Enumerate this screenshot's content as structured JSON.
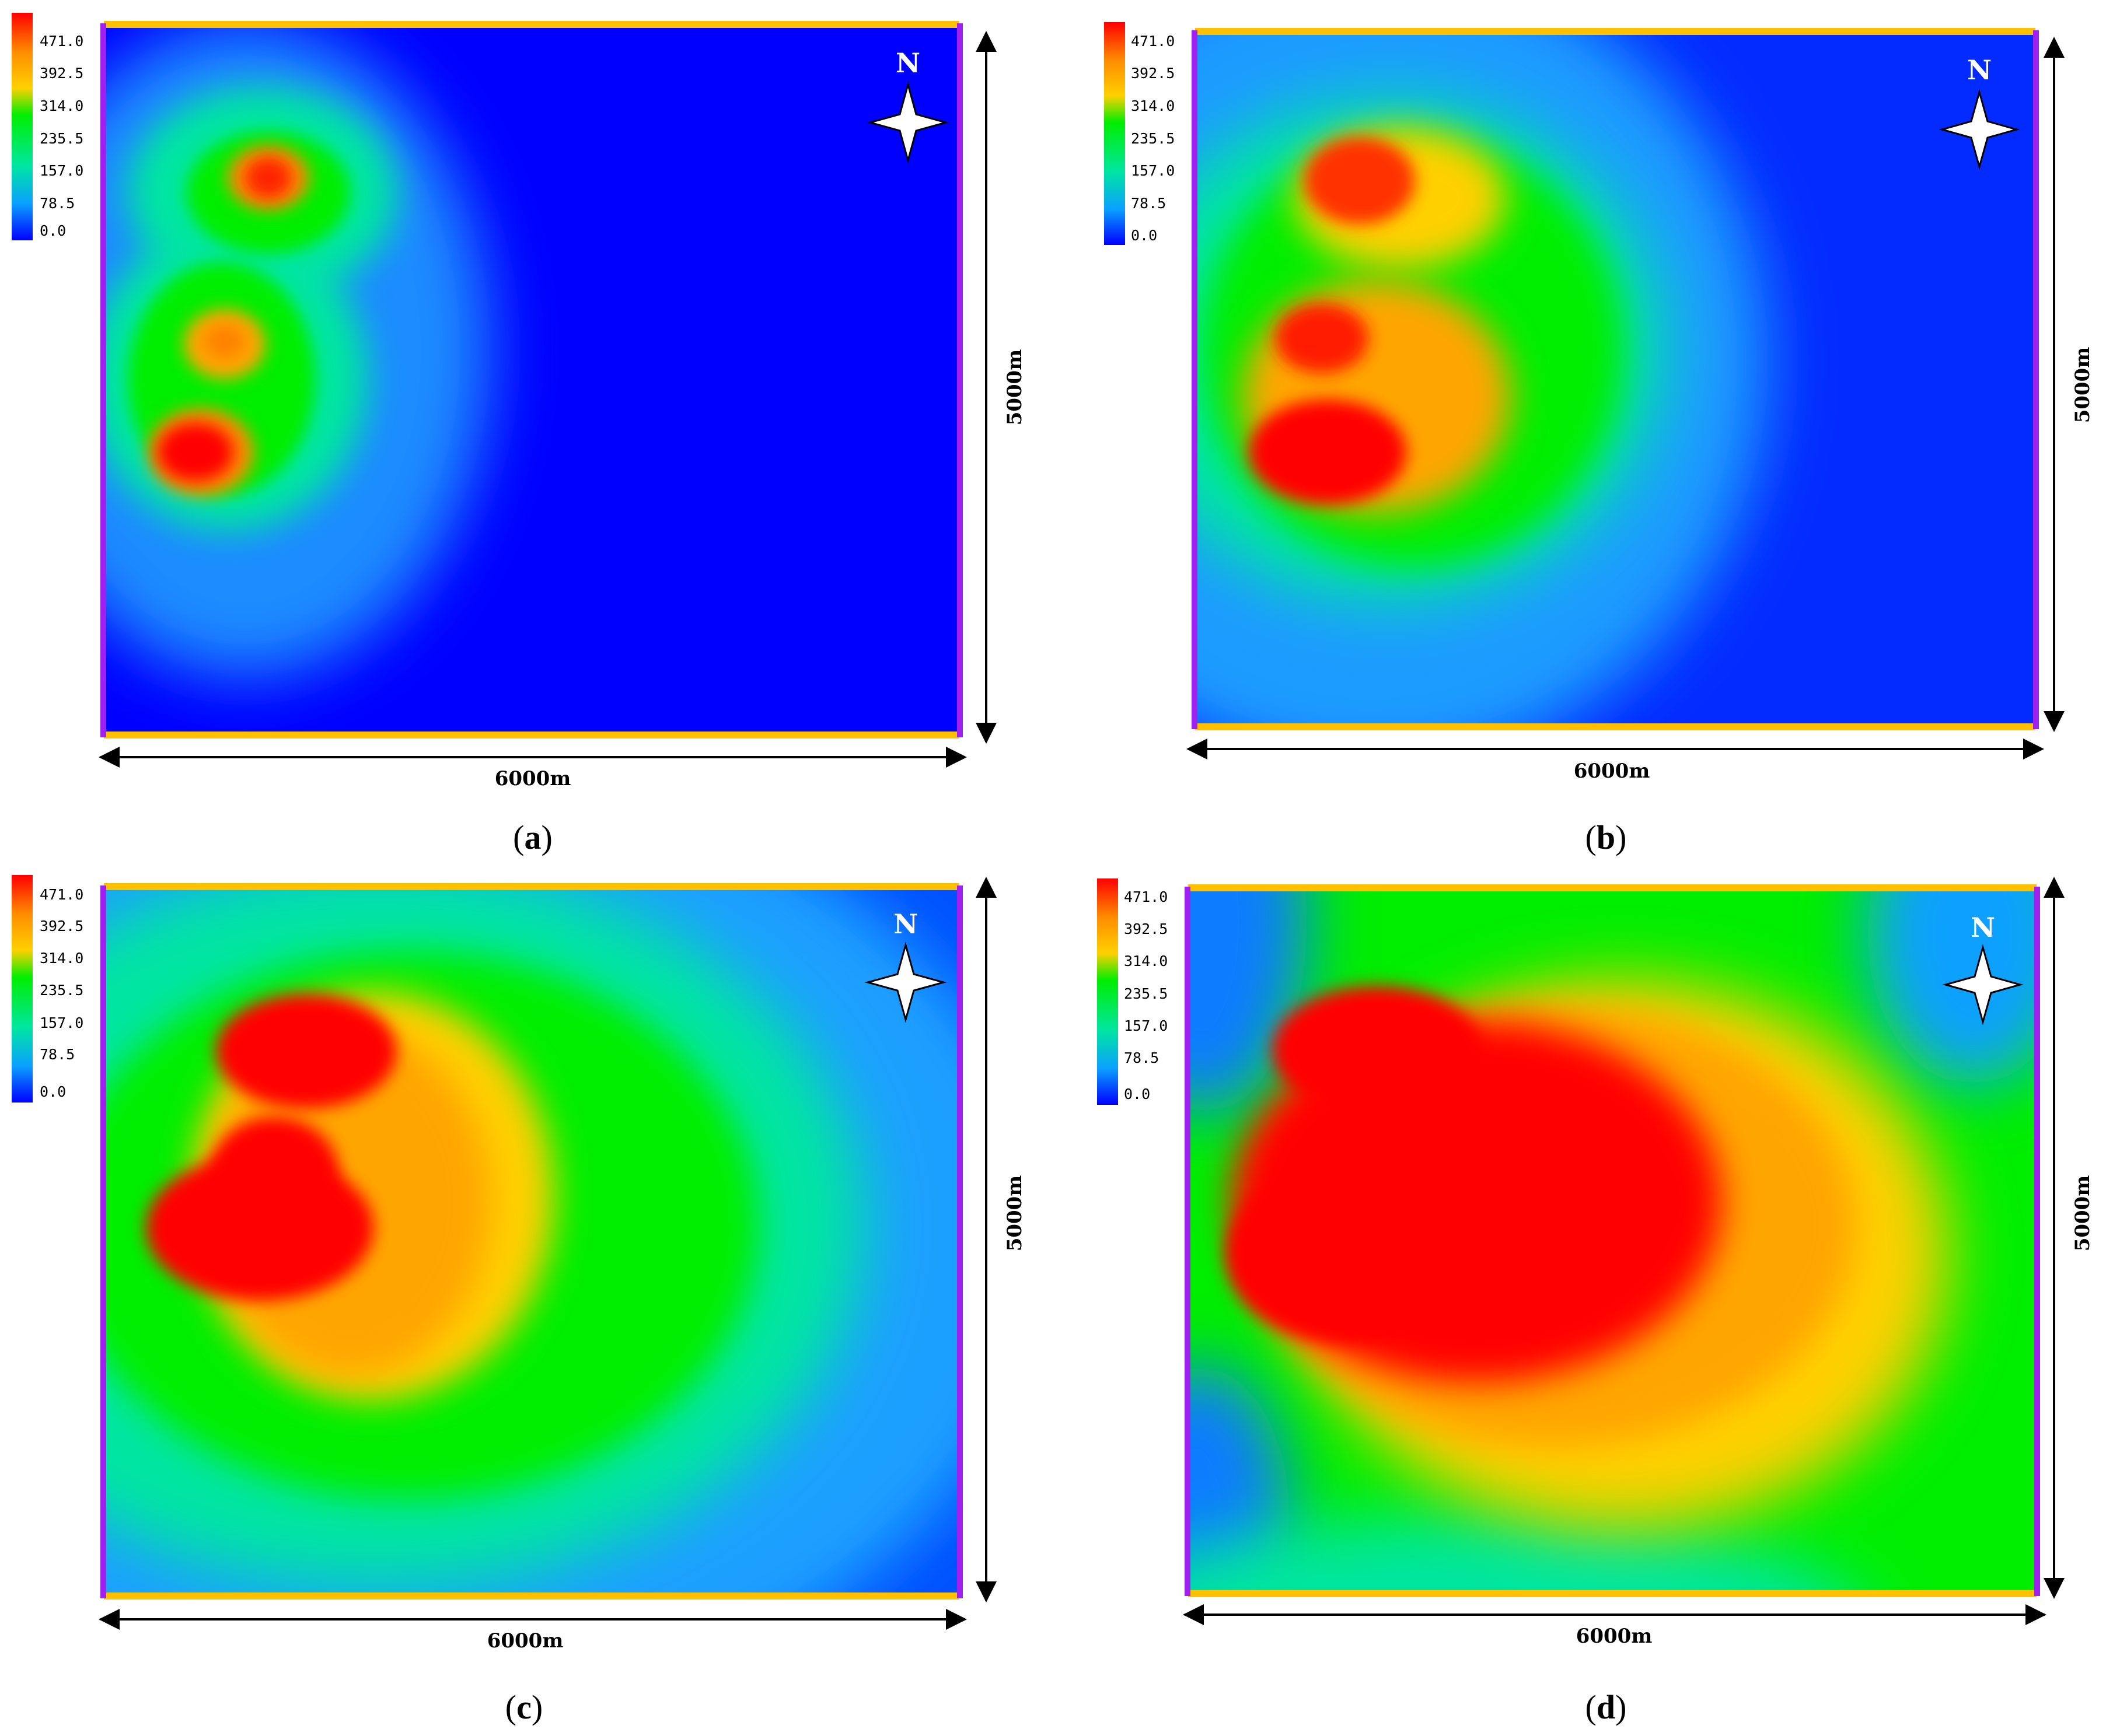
{
  "colorbar": {
    "ticks": [
      "471.0",
      "392.5",
      "314.0",
      "235.5",
      "157.0",
      "78.5",
      "0.0"
    ],
    "colors": [
      "#ff0000",
      "#ff8c00",
      "#ffd000",
      "#00ee00",
      "#00e6a0",
      "#0aa0ff",
      "#0000ff"
    ]
  },
  "dimensions": {
    "width_label": "6000m",
    "height_label": "5000m"
  },
  "north_label": "N",
  "boundaries": {
    "top_bottom_color": "#ffc000",
    "side_color": "#a020f0"
  },
  "panels": [
    {
      "letter": "a",
      "caption_open": "(",
      "caption_close": ")"
    },
    {
      "letter": "b",
      "caption_open": "(",
      "caption_close": ")"
    },
    {
      "letter": "c",
      "caption_open": "(",
      "caption_close": ")"
    },
    {
      "letter": "d",
      "caption_open": "(",
      "caption_close": ")"
    }
  ]
}
